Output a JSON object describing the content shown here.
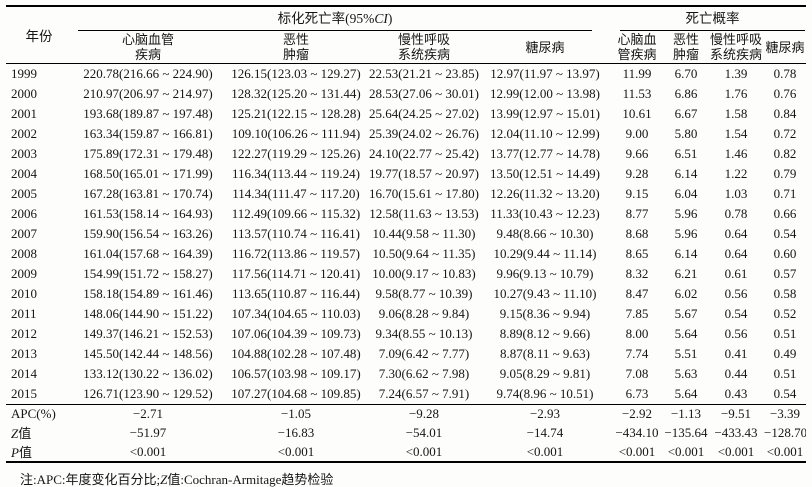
{
  "table": {
    "year_header": "年份",
    "rate_group": {
      "prefix": "标化死亡率(95%",
      "italic": "CI",
      "suffix": ")"
    },
    "prob_group_label": "死亡概率",
    "rate_cols": [
      "心脑血管\n疾病",
      "恶性\n肿瘤",
      "慢性呼吸\n系统疾病",
      "糖尿病"
    ],
    "prob_cols": [
      "心脑血\n管疾病",
      "恶性\n肿瘤",
      "慢性呼吸\n系统疾病",
      "糖尿病"
    ],
    "rows": [
      {
        "year": "1999",
        "cells": [
          "220.78(216.66 ~ 224.90)",
          "126.15(123.03 ~ 129.27)",
          "22.53(21.21 ~ 23.85)",
          "12.97(11.97 ~ 13.97)",
          "11.99",
          "6.70",
          "1.39",
          "0.78"
        ]
      },
      {
        "year": "2000",
        "cells": [
          "210.97(206.97 ~ 214.97)",
          "128.32(125.20 ~ 131.44)",
          "28.53(27.06 ~ 30.01)",
          "12.99(12.00 ~ 13.98)",
          "11.53",
          "6.86",
          "1.76",
          "0.76"
        ]
      },
      {
        "year": "2001",
        "cells": [
          "193.68(189.87 ~ 197.48)",
          "125.21(122.15 ~ 128.28)",
          "25.64(24.25 ~ 27.02)",
          "13.99(12.97 ~ 15.01)",
          "10.61",
          "6.67",
          "1.58",
          "0.84"
        ]
      },
      {
        "year": "2002",
        "cells": [
          "163.34(159.87 ~ 166.81)",
          "109.10(106.26 ~ 111.94)",
          "25.39(24.02 ~ 26.76)",
          "12.04(11.10 ~ 12.99)",
          "9.00",
          "5.80",
          "1.54",
          "0.72"
        ]
      },
      {
        "year": "2003",
        "cells": [
          "175.89(172.31 ~ 179.48)",
          "122.27(119.29 ~ 125.26)",
          "24.10(22.77 ~ 25.42)",
          "13.77(12.77 ~ 14.78)",
          "9.66",
          "6.51",
          "1.46",
          "0.82"
        ]
      },
      {
        "year": "2004",
        "cells": [
          "168.50(165.01 ~ 171.99)",
          "116.34(113.44 ~ 119.24)",
          "19.77(18.57 ~ 20.97)",
          "13.50(12.51 ~ 14.49)",
          "9.28",
          "6.14",
          "1.22",
          "0.79"
        ]
      },
      {
        "year": "2005",
        "cells": [
          "167.28(163.81 ~ 170.74)",
          "114.34(111.47 ~ 117.20)",
          "16.70(15.61 ~ 17.80)",
          "12.26(11.32 ~ 13.20)",
          "9.15",
          "6.04",
          "1.03",
          "0.71"
        ]
      },
      {
        "year": "2006",
        "cells": [
          "161.53(158.14 ~ 164.93)",
          "112.49(109.66 ~ 115.32)",
          "12.58(11.63 ~ 13.53)",
          "11.33(10.43 ~ 12.23)",
          "8.77",
          "5.96",
          "0.78",
          "0.66"
        ]
      },
      {
        "year": "2007",
        "cells": [
          "159.90(156.54 ~ 163.26)",
          "113.57(110.74 ~ 116.41)",
          "10.44(9.58 ~ 11.30)",
          "9.48(8.66 ~ 10.30)",
          "8.68",
          "5.96",
          "0.64",
          "0.54"
        ]
      },
      {
        "year": "2008",
        "cells": [
          "161.04(157.68 ~ 164.39)",
          "116.72(113.86 ~ 119.57)",
          "10.50(9.64 ~ 11.35)",
          "10.29(9.44 ~ 11.14)",
          "8.65",
          "6.14",
          "0.64",
          "0.60"
        ]
      },
      {
        "year": "2009",
        "cells": [
          "154.99(151.72 ~ 158.27)",
          "117.56(114.71 ~ 120.41)",
          "10.00(9.17 ~ 10.83)",
          "9.96(9.13 ~ 10.79)",
          "8.32",
          "6.21",
          "0.61",
          "0.57"
        ]
      },
      {
        "year": "2010",
        "cells": [
          "158.18(154.89 ~ 161.46)",
          "113.65(110.87 ~ 116.44)",
          "9.58(8.77 ~ 10.39)",
          "10.27(9.43 ~ 11.10)",
          "8.47",
          "6.02",
          "0.56",
          "0.58"
        ]
      },
      {
        "year": "2011",
        "cells": [
          "148.06(144.90 ~ 151.22)",
          "107.34(104.65 ~ 110.03)",
          "9.06(8.28 ~ 9.84)",
          "9.15(8.36 ~ 9.94)",
          "7.85",
          "5.67",
          "0.54",
          "0.52"
        ]
      },
      {
        "year": "2012",
        "cells": [
          "149.37(146.21 ~ 152.53)",
          "107.06(104.39 ~ 109.73)",
          "9.34(8.55 ~ 10.13)",
          "8.89(8.12 ~ 9.66)",
          "8.00",
          "5.64",
          "0.56",
          "0.51"
        ]
      },
      {
        "year": "2013",
        "cells": [
          "145.50(142.44 ~ 148.56)",
          "104.88(102.28 ~ 107.48)",
          "7.09(6.42 ~ 7.77)",
          "8.87(8.11 ~ 9.63)",
          "7.74",
          "5.51",
          "0.41",
          "0.49"
        ]
      },
      {
        "year": "2014",
        "cells": [
          "133.12(130.22 ~ 136.02)",
          "106.57(103.98 ~ 109.17)",
          "7.30(6.62 ~ 7.98)",
          "9.05(8.29 ~ 9.81)",
          "7.08",
          "5.63",
          "0.44",
          "0.51"
        ]
      },
      {
        "year": "2015",
        "cells": [
          "126.71(123.90 ~ 129.52)",
          "107.27(104.68 ~ 109.85)",
          "7.24(6.57 ~ 7.91)",
          "9.74(8.96 ~ 10.51)",
          "6.73",
          "5.64",
          "0.43",
          "0.54"
        ]
      }
    ],
    "stat_rows": [
      {
        "label_italic": "",
        "label_text": "APC(%)",
        "cells": [
          "−2.71",
          "−1.05",
          "−9.28",
          "−2.93",
          "−2.92",
          "−1.13",
          "−9.51",
          "−3.39"
        ]
      },
      {
        "label_italic": "Z",
        "label_text": "值",
        "cells": [
          "−51.97",
          "−16.83",
          "−54.01",
          "−14.74",
          "−434.10",
          "−135.64",
          "−433.43",
          "−128.70"
        ]
      },
      {
        "label_italic": "P",
        "label_text": "值",
        "cells": [
          "<0.001",
          "<0.001",
          "<0.001",
          "<0.001",
          "<0.001",
          "<0.001",
          "<0.001",
          "<0.001"
        ]
      }
    ]
  },
  "footnote": {
    "prefix": "注:APC:年度变化百分比;",
    "italic": "Z",
    "suffix": "值:Cochran-Armitage趋势检验"
  },
  "colors": {
    "background": "#fdfdfc",
    "text": "#151515",
    "rule": "#000000"
  }
}
